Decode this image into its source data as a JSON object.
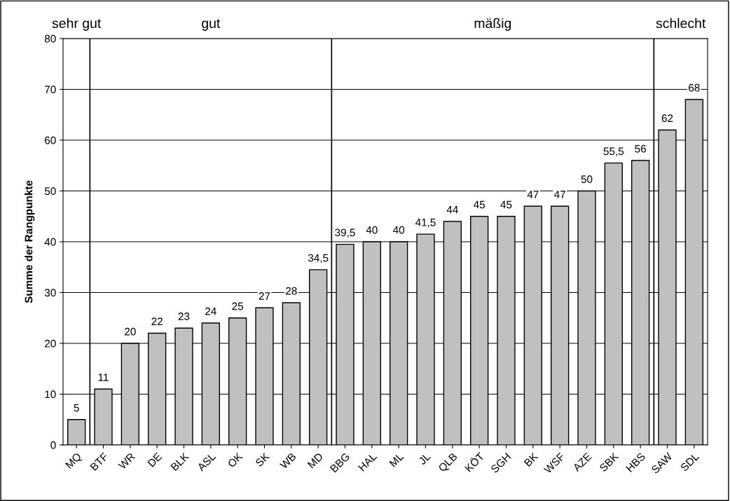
{
  "chart_data": {
    "type": "bar",
    "ylabel": "Summe der Rangpunkte",
    "categories": [
      "MQ",
      "BTF",
      "WR",
      "DE",
      "BLK",
      "ASL",
      "OK",
      "SK",
      "WB",
      "MD",
      "BBG",
      "HAL",
      "ML",
      "JL",
      "QLB",
      "KÖT",
      "SGH",
      "BK",
      "WSF",
      "AZE",
      "SBK",
      "HBS",
      "SAW",
      "SDL"
    ],
    "values": [
      5,
      11,
      20,
      22,
      23,
      24,
      25,
      27,
      28,
      34.5,
      39.5,
      40,
      40,
      41.5,
      44,
      45,
      45,
      47,
      47,
      50,
      55.5,
      56,
      62,
      68
    ],
    "value_labels": [
      "5",
      "11",
      "20",
      "22",
      "23",
      "24",
      "25",
      "27",
      "28",
      "34,5",
      "39,5",
      "40",
      "40",
      "41,5",
      "44",
      "45",
      "45",
      "47",
      "47",
      "50",
      "55,5",
      "56",
      "62",
      "68"
    ],
    "color": "#c0c0c0",
    "ylim": [
      0,
      80
    ],
    "yticks": [
      0,
      10,
      20,
      30,
      40,
      50,
      60,
      70,
      80
    ],
    "grid": "y",
    "annotations": [
      "sehr gut",
      "gut",
      "mäßig",
      "schlecht"
    ]
  }
}
